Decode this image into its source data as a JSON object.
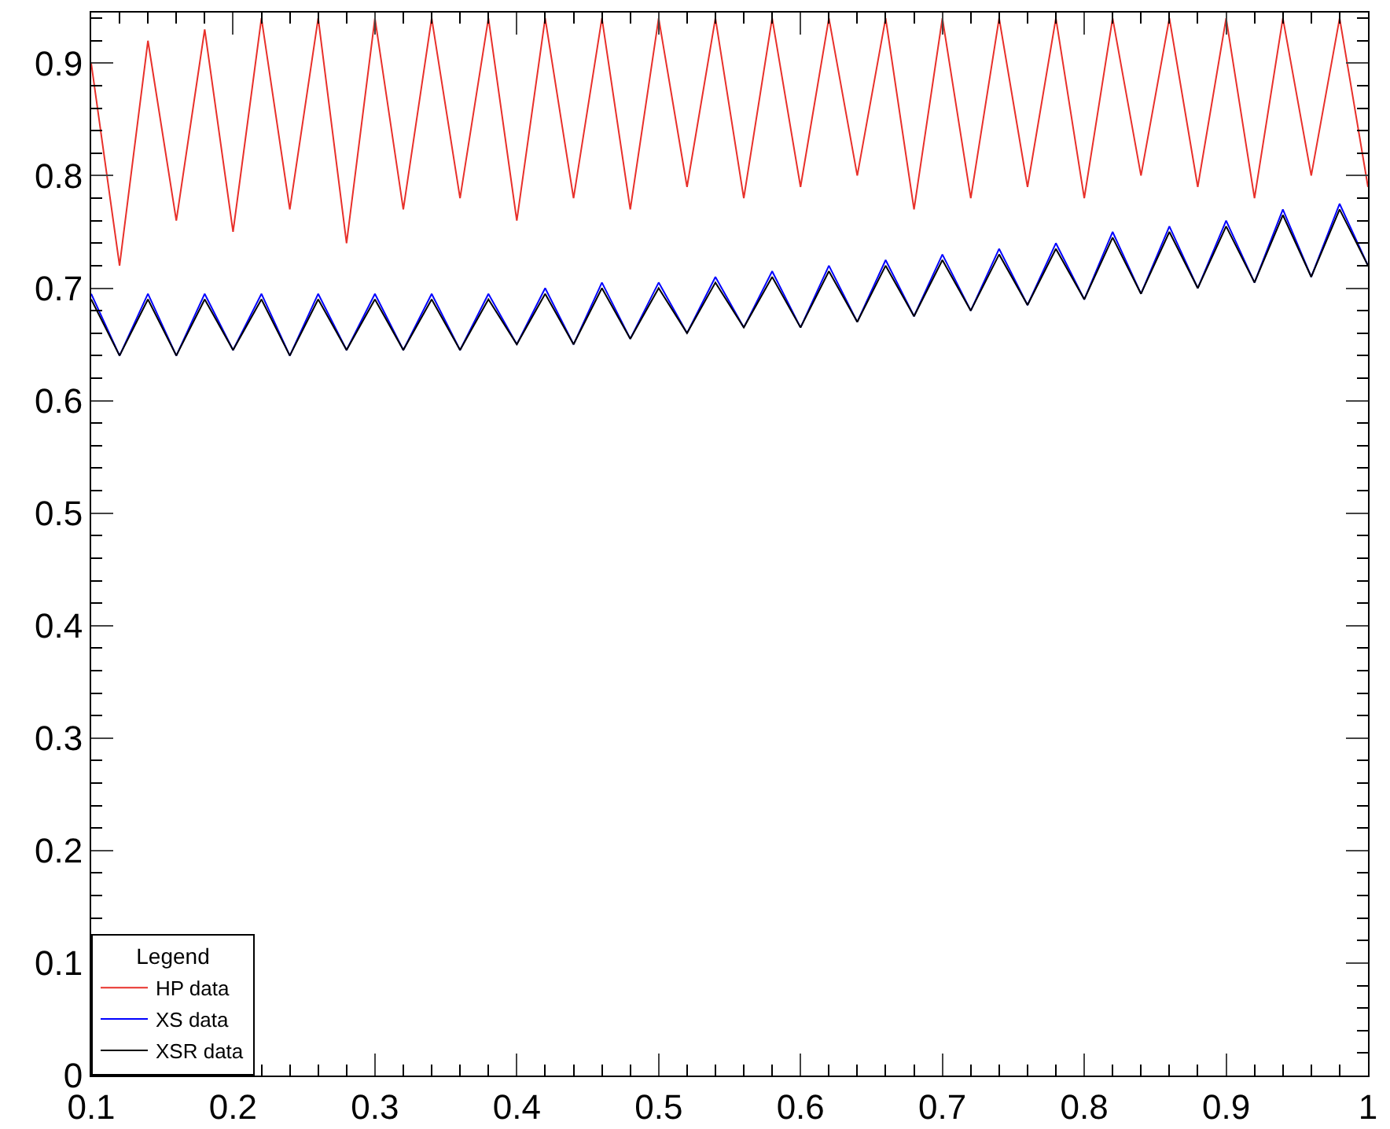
{
  "chart_data": {
    "type": "line",
    "legend_title": "Legend",
    "x": [
      0.1,
      0.12,
      0.14,
      0.16,
      0.18,
      0.2,
      0.22,
      0.24,
      0.26,
      0.28,
      0.3,
      0.32,
      0.34,
      0.36,
      0.38,
      0.4,
      0.42,
      0.44,
      0.46,
      0.48,
      0.5,
      0.52,
      0.54,
      0.56,
      0.58,
      0.6,
      0.62,
      0.64,
      0.66,
      0.68,
      0.7,
      0.72,
      0.74,
      0.76,
      0.78,
      0.8,
      0.82,
      0.84,
      0.86,
      0.88,
      0.9,
      0.92,
      0.94,
      0.96,
      0.98,
      1.0
    ],
    "series": [
      {
        "name": "HP data",
        "color": "#e8302a",
        "values": [
          0.9,
          0.72,
          0.92,
          0.76,
          0.93,
          0.75,
          0.94,
          0.77,
          0.94,
          0.74,
          0.94,
          0.77,
          0.94,
          0.78,
          0.94,
          0.76,
          0.94,
          0.78,
          0.94,
          0.77,
          0.94,
          0.79,
          0.94,
          0.78,
          0.94,
          0.79,
          0.94,
          0.8,
          0.94,
          0.77,
          0.94,
          0.78,
          0.94,
          0.79,
          0.94,
          0.78,
          0.94,
          0.8,
          0.94,
          0.79,
          0.94,
          0.78,
          0.94,
          0.8,
          0.94,
          0.79
        ]
      },
      {
        "name": "XS data",
        "color": "#0000ff",
        "values": [
          0.695,
          0.64,
          0.695,
          0.64,
          0.695,
          0.645,
          0.695,
          0.64,
          0.695,
          0.645,
          0.695,
          0.645,
          0.695,
          0.645,
          0.695,
          0.65,
          0.7,
          0.65,
          0.705,
          0.655,
          0.705,
          0.66,
          0.71,
          0.665,
          0.715,
          0.665,
          0.72,
          0.67,
          0.725,
          0.675,
          0.73,
          0.68,
          0.735,
          0.685,
          0.74,
          0.69,
          0.75,
          0.695,
          0.755,
          0.7,
          0.76,
          0.705,
          0.77,
          0.71,
          0.775,
          0.72
        ]
      },
      {
        "name": "XSR data",
        "color": "#000000",
        "values": [
          0.69,
          0.64,
          0.69,
          0.64,
          0.69,
          0.645,
          0.69,
          0.64,
          0.69,
          0.645,
          0.69,
          0.645,
          0.69,
          0.645,
          0.69,
          0.65,
          0.695,
          0.65,
          0.7,
          0.655,
          0.7,
          0.66,
          0.705,
          0.665,
          0.71,
          0.665,
          0.715,
          0.67,
          0.72,
          0.675,
          0.725,
          0.68,
          0.73,
          0.685,
          0.735,
          0.69,
          0.745,
          0.695,
          0.75,
          0.7,
          0.755,
          0.705,
          0.765,
          0.71,
          0.77,
          0.72
        ]
      }
    ],
    "xlim": [
      0.1,
      1.0
    ],
    "xticks": [
      0.1,
      0.2,
      0.3,
      0.4,
      0.5,
      0.6,
      0.7,
      0.8,
      0.9,
      1
    ],
    "ylim": [
      0,
      0.945
    ],
    "yticks": [
      0,
      0.1,
      0.2,
      0.3,
      0.4,
      0.5,
      0.6,
      0.7,
      0.8,
      0.9
    ],
    "grid": false,
    "legend": "bottom left",
    "marker": "none",
    "line_style": "solid"
  }
}
